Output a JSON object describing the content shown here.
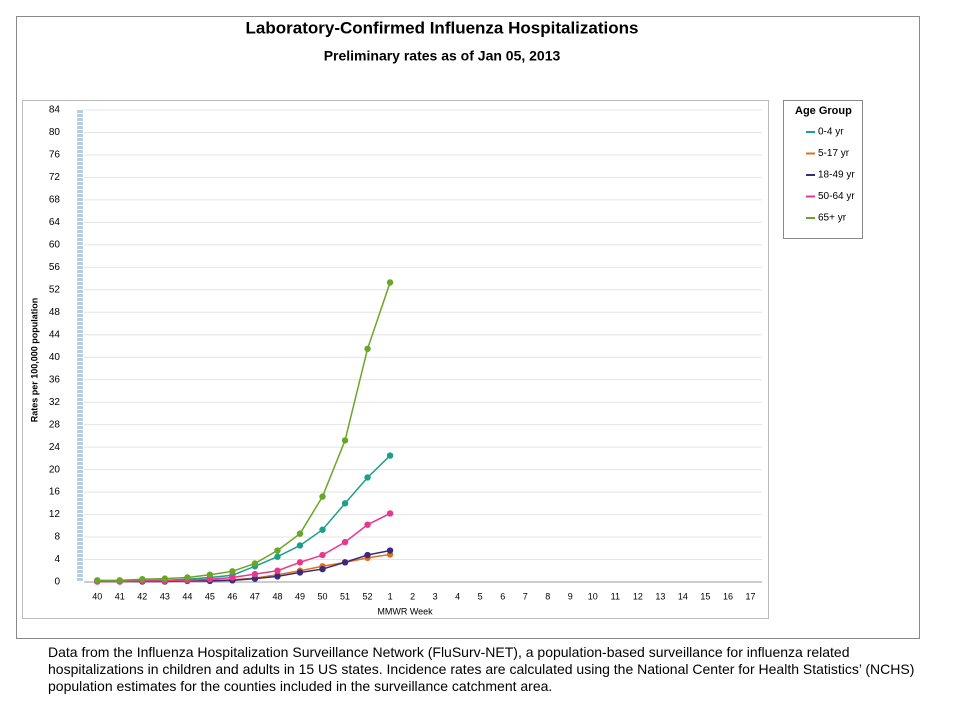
{
  "chart_data": {
    "type": "line",
    "title": "Laboratory-Confirmed Influenza Hospitalizations",
    "subtitle": "Preliminary rates as of Jan 05, 2013",
    "x_label": "MMWR Week",
    "y_label": "Rates per 100,000 population",
    "legend_title": "Age Group",
    "categories": [
      "40",
      "41",
      "42",
      "43",
      "44",
      "45",
      "46",
      "47",
      "48",
      "49",
      "50",
      "51",
      "52",
      "1",
      "2",
      "3",
      "4",
      "5",
      "6",
      "7",
      "8",
      "9",
      "10",
      "11",
      "12",
      "13",
      "14",
      "15",
      "16",
      "17"
    ],
    "series": [
      {
        "name": "0-4 yr",
        "color": "#1f9e89",
        "values": [
          0.2,
          0.2,
          0.3,
          0.3,
          0.5,
          0.8,
          1.2,
          2.8,
          4.5,
          6.5,
          9.3,
          14,
          18.6,
          22.5,
          null,
          null,
          null,
          null,
          null,
          null,
          null,
          null,
          null,
          null,
          null,
          null,
          null,
          null,
          null,
          null
        ]
      },
      {
        "name": "5-17 yr",
        "color": "#e0701c",
        "values": [
          0.1,
          0.1,
          0.1,
          0.1,
          0.2,
          0.3,
          0.4,
          0.7,
          1.3,
          2.0,
          2.8,
          3.5,
          4.3,
          4.9,
          null,
          null,
          null,
          null,
          null,
          null,
          null,
          null,
          null,
          null,
          null,
          null,
          null,
          null,
          null,
          null
        ]
      },
      {
        "name": "18-49 yr",
        "color": "#3b2a7a",
        "values": [
          0.1,
          0.1,
          0.1,
          0.1,
          0.2,
          0.2,
          0.3,
          0.6,
          1.0,
          1.7,
          2.3,
          3.5,
          4.8,
          5.6,
          null,
          null,
          null,
          null,
          null,
          null,
          null,
          null,
          null,
          null,
          null,
          null,
          null,
          null,
          null,
          null
        ]
      },
      {
        "name": "50-64 yr",
        "color": "#e6388f",
        "values": [
          0.1,
          0.1,
          0.2,
          0.2,
          0.3,
          0.5,
          0.8,
          1.4,
          2.0,
          3.5,
          4.8,
          7.1,
          10.2,
          12.2,
          null,
          null,
          null,
          null,
          null,
          null,
          null,
          null,
          null,
          null,
          null,
          null,
          null,
          null,
          null,
          null
        ]
      },
      {
        "name": "65+ yr",
        "color": "#6aa626",
        "values": [
          0.3,
          0.3,
          0.5,
          0.6,
          0.8,
          1.3,
          1.9,
          3.3,
          5.6,
          8.6,
          15.2,
          25.2,
          41.5,
          53.3,
          null,
          null,
          null,
          null,
          null,
          null,
          null,
          null,
          null,
          null,
          null,
          null,
          null,
          null,
          null,
          null
        ]
      }
    ],
    "ylim": [
      0,
      84
    ],
    "yticks": [
      0,
      4,
      8,
      12,
      16,
      20,
      24,
      28,
      32,
      36,
      40,
      44,
      48,
      52,
      56,
      60,
      64,
      68,
      72,
      76,
      80,
      84
    ],
    "grid": true,
    "legend": "right",
    "footnote": "Data from the Influenza Hospitalization Surveillance Network (FluSurv-NET), a population-based surveillance for influenza related hospitalizations in children and adults in 15 US states.  Incidence rates are calculated using the National Center for Health Statistics’ (NCHS) population estimates for the counties included in the surveillance catchment area."
  }
}
